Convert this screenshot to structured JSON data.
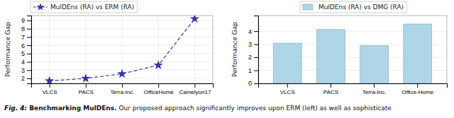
{
  "chart_data": [
    {
      "type": "line",
      "categories": [
        "VLCS",
        "PACS",
        "Terra-Inc.",
        "OfficeHome",
        "Camelyon17"
      ],
      "series": [
        {
          "name": "MulDEns (RA) vs ERM (RA)",
          "color": "#3333aa",
          "values": [
            1.7,
            2.0,
            2.55,
            3.6,
            9.2
          ],
          "marker": "star",
          "line_style": "dashed"
        }
      ],
      "y_label": "Performance Gap",
      "ylim": [
        1.4,
        9.6
      ],
      "yticks": [
        2,
        3,
        4,
        5,
        6,
        7,
        8,
        9
      ],
      "grid": true,
      "legend": "upper left",
      "annotations": [
        "Fig. 4: ",
        "Benchmarking MulDEns.",
        " Our proposed approach significantly improves upon ERM (left) as well as sophisticate"
      ]
    },
    {
      "type": "bar",
      "categories": [
        "VLCS",
        "PACS",
        "Terra-Inc.",
        "Office-Home"
      ],
      "series": [
        {
          "name": "MulDEns (RA) vs DMG (RA)",
          "color": "#aed6e8",
          "values": [
            3.08,
            4.13,
            2.9,
            4.55
          ]
        }
      ],
      "y_label": "Performance Gap",
      "ylim": [
        0,
        5.2
      ],
      "yticks": [
        0,
        1,
        2,
        3,
        4
      ],
      "grid": "y",
      "legend": "upper center"
    }
  ]
}
